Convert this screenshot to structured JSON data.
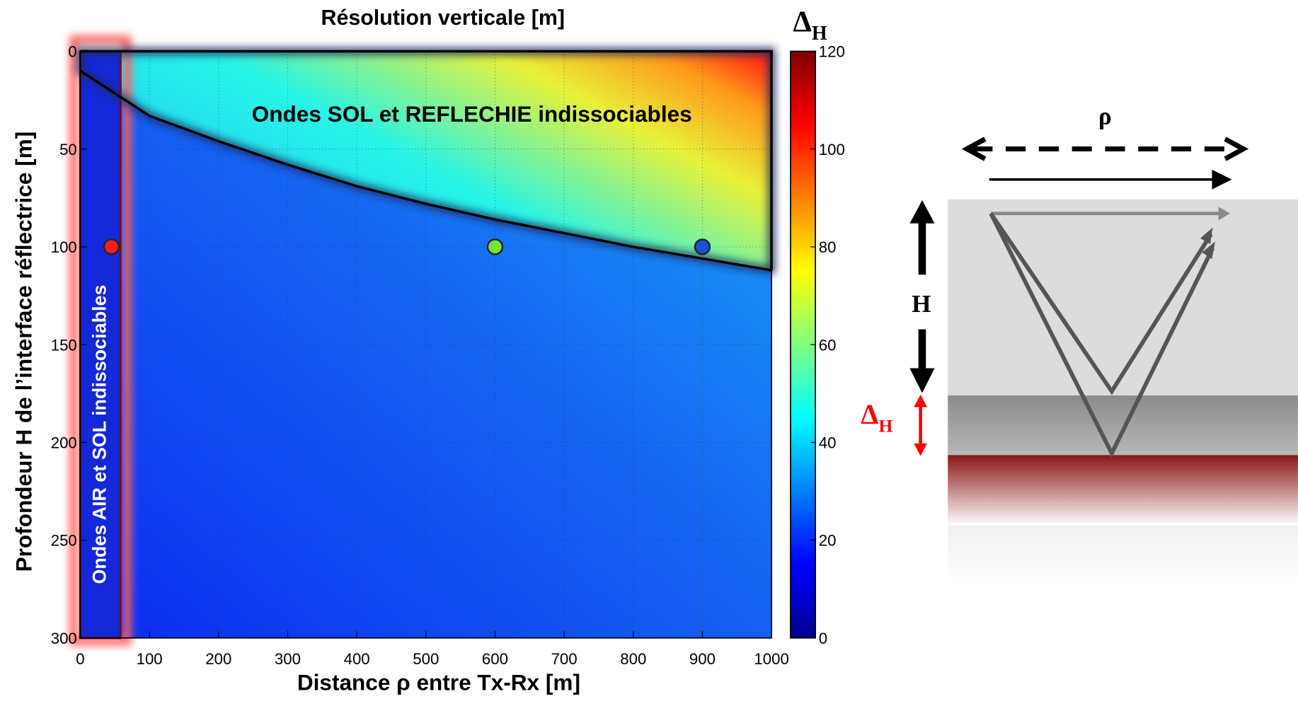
{
  "chart_data": {
    "type": "heatmap",
    "title": "Résolution verticale [m]",
    "xlabel": "Distance ρ entre Tx-Rx [m]",
    "ylabel": "Profondeur H de l’interface réflectrice [m]",
    "xlim": [
      0,
      1000
    ],
    "xticks": [
      0,
      100,
      200,
      300,
      400,
      500,
      600,
      700,
      800,
      900,
      1000
    ],
    "ylim": [
      300,
      0
    ],
    "yticks": [
      0,
      50,
      100,
      150,
      200,
      250,
      300
    ],
    "grid": true,
    "colorbar": {
      "label": "Δ",
      "label_sub": "H",
      "clim": [
        0,
        120
      ],
      "ticks": [
        0,
        20,
        40,
        60,
        80,
        100,
        120
      ]
    },
    "annotations": [
      "Ondes SOL et REFLECHIE indissociables",
      "Ondes AIR et SOL indissociables"
    ],
    "boundary": {
      "x": [
        0,
        100,
        200,
        300,
        400,
        500,
        600,
        700,
        800,
        900,
        1000
      ],
      "y": [
        10,
        33,
        46,
        58,
        69,
        78,
        86,
        93,
        100,
        106,
        112
      ]
    },
    "points": {
      "x": [
        45,
        600,
        900
      ],
      "y": [
        100,
        100,
        100
      ],
      "colors": [
        "#ff1a1a",
        "#7be03c",
        "#1a4fd6"
      ]
    }
  },
  "diagram": {
    "rho": "ρ",
    "H": "H",
    "delta": "Δ",
    "delta_sub": "H"
  }
}
